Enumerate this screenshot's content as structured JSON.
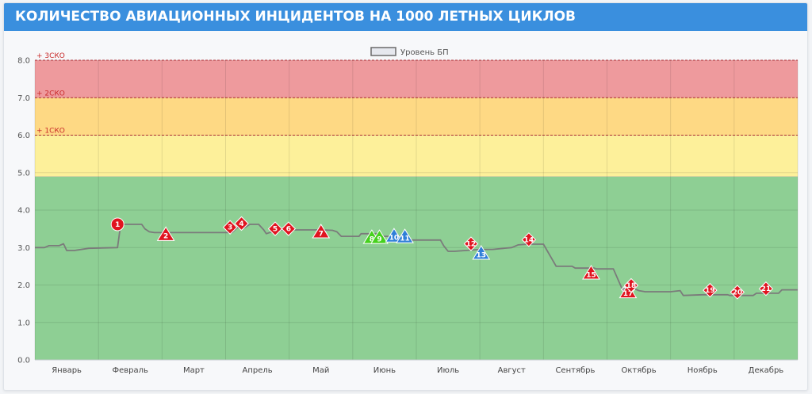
{
  "header": {
    "title": "КОЛИЧЕСТВО АВИАЦИОННЫХ ИНЦИДЕНТОВ НА 1000 ЛЕТНЫХ ЦИКЛОВ"
  },
  "legend": {
    "label": "Уровень БП"
  },
  "colors": {
    "red_band": "#ee9a9d",
    "orange_band": "#fed984",
    "yellow_band": "#fdf09a",
    "green_band": "#8ecf94",
    "line": "#7b7b7b",
    "marker_red": "#e0141f",
    "marker_blue": "#2f7fd8",
    "marker_green": "#45d11d",
    "marker_gray": "#9a9a9a",
    "band_label": "#c82a2a"
  },
  "chart_data": {
    "type": "line",
    "title": "",
    "xlabel": "",
    "ylabel": "",
    "ylim": [
      0,
      8
    ],
    "y_ticks": [
      "0.0",
      "1.0",
      "2.0",
      "3.0",
      "4.0",
      "5.0",
      "6.0",
      "7.0",
      "8.0"
    ],
    "categories": [
      "Январь",
      "Февраль",
      "Март",
      "Апрель",
      "Май",
      "Июнь",
      "Июль",
      "Август",
      "Сентябрь",
      "Октябрь",
      "Ноябрь",
      "Декабрь"
    ],
    "grid": true,
    "legend_position": "top-center",
    "bands": [
      {
        "from": 7.0,
        "to": 8.0,
        "color": "red_band",
        "label": "+ 3СКО"
      },
      {
        "from": 6.0,
        "to": 7.0,
        "color": "orange_band",
        "label": "+ 2СКО"
      },
      {
        "from": 4.9,
        "to": 6.0,
        "color": "yellow_band",
        "label": "+ 1СКО"
      },
      {
        "from": 0.0,
        "to": 4.9,
        "color": "green_band",
        "label": ""
      }
    ],
    "series": [
      {
        "name": "Уровень БП",
        "x": [
          0.0,
          0.15,
          0.22,
          0.38,
          0.45,
          0.5,
          0.62,
          0.85,
          1.3,
          1.35,
          1.68,
          1.73,
          1.8,
          1.88,
          2.5,
          3.1,
          3.18,
          3.3,
          3.38,
          3.52,
          3.6,
          3.64,
          3.82,
          4.0,
          4.5,
          4.68,
          4.75,
          4.82,
          5.1,
          5.13,
          5.45,
          5.48,
          5.78,
          5.88,
          6.38,
          6.43,
          6.5,
          6.6,
          7.0,
          7.2,
          7.5,
          7.6,
          7.75,
          7.8,
          8.0,
          8.2,
          8.45,
          8.5,
          8.8,
          8.83,
          9.1,
          9.25,
          9.35,
          9.4,
          9.5,
          9.6,
          10.0,
          10.15,
          10.2,
          10.5,
          10.9,
          10.93,
          11.3,
          11.35,
          11.7,
          11.75,
          12.0
        ],
        "y": [
          3.0,
          3.0,
          3.05,
          3.05,
          3.1,
          2.92,
          2.92,
          2.98,
          3.0,
          3.62,
          3.62,
          3.5,
          3.42,
          3.4,
          3.4,
          3.4,
          3.53,
          3.53,
          3.62,
          3.62,
          3.47,
          3.37,
          3.47,
          3.47,
          3.47,
          3.46,
          3.42,
          3.3,
          3.3,
          3.37,
          3.37,
          3.3,
          3.3,
          3.2,
          3.2,
          3.05,
          2.9,
          2.9,
          2.95,
          2.95,
          3.0,
          3.07,
          3.09,
          3.09,
          3.09,
          2.5,
          2.5,
          2.45,
          2.45,
          2.43,
          2.43,
          1.85,
          1.85,
          1.92,
          1.85,
          1.82,
          1.82,
          1.85,
          1.72,
          1.74,
          1.74,
          1.72,
          1.72,
          1.78,
          1.78,
          1.87,
          1.87
        ]
      }
    ],
    "markers": [
      {
        "label": "1",
        "x": 1.3,
        "y": 3.62,
        "shape": "circle",
        "color": "marker_red"
      },
      {
        "label": "2",
        "x": 2.06,
        "y": 3.35,
        "shape": "triangle",
        "color": "marker_red"
      },
      {
        "label": "3",
        "x": 3.07,
        "y": 3.54,
        "shape": "diamond",
        "color": "marker_red"
      },
      {
        "label": "4",
        "x": 3.25,
        "y": 3.64,
        "shape": "diamond",
        "color": "marker_red"
      },
      {
        "label": "5",
        "x": 3.78,
        "y": 3.5,
        "shape": "diamond",
        "color": "marker_red"
      },
      {
        "label": "6",
        "x": 3.99,
        "y": 3.5,
        "shape": "diamond",
        "color": "marker_red"
      },
      {
        "label": "7",
        "x": 4.5,
        "y": 3.42,
        "shape": "triangle",
        "color": "marker_red"
      },
      {
        "label": "8",
        "x": 5.3,
        "y": 3.27,
        "shape": "triangle",
        "color": "marker_green"
      },
      {
        "label": "9",
        "x": 5.42,
        "y": 3.27,
        "shape": "triangle",
        "color": "marker_green"
      },
      {
        "label": "10",
        "x": 5.65,
        "y": 3.31,
        "shape": "triangle",
        "color": "marker_blue"
      },
      {
        "label": "11",
        "x": 5.82,
        "y": 3.29,
        "shape": "triangle",
        "color": "marker_blue"
      },
      {
        "label": "12",
        "x": 6.86,
        "y": 3.1,
        "shape": "diamond",
        "color": "marker_red"
      },
      {
        "label": "13",
        "x": 7.02,
        "y": 2.85,
        "shape": "triangle",
        "color": "marker_blue"
      },
      {
        "label": "14",
        "x": 7.77,
        "y": 3.21,
        "shape": "diamond",
        "color": "marker_red"
      },
      {
        "label": "15",
        "x": 8.75,
        "y": 2.32,
        "shape": "triangle",
        "color": "marker_red"
      },
      {
        "label": "16",
        "x": 9.33,
        "y": 1.88,
        "shape": "diamond",
        "color": "marker_gray"
      },
      {
        "label": "17",
        "x": 9.33,
        "y": 1.82,
        "shape": "triangle",
        "color": "marker_red"
      },
      {
        "label": "18",
        "x": 9.38,
        "y": 1.99,
        "shape": "diamond",
        "color": "marker_red"
      },
      {
        "label": "19",
        "x": 10.62,
        "y": 1.86,
        "shape": "diamond",
        "color": "marker_red"
      },
      {
        "label": "20",
        "x": 11.05,
        "y": 1.81,
        "shape": "diamond",
        "color": "marker_red"
      },
      {
        "label": "21",
        "x": 11.5,
        "y": 1.9,
        "shape": "diamond",
        "color": "marker_red"
      }
    ]
  }
}
